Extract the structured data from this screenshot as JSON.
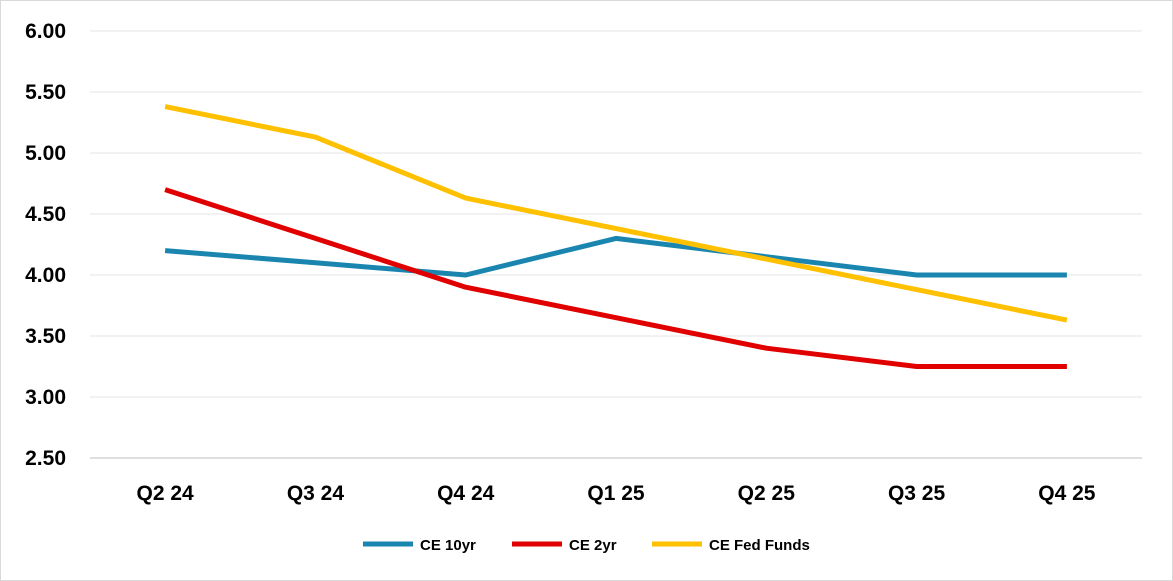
{
  "chart_data": {
    "type": "line",
    "title": "",
    "xlabel": "",
    "ylabel": "",
    "categories": [
      "Q2 24",
      "Q3 24",
      "Q4 24",
      "Q1 25",
      "Q2 25",
      "Q3 25",
      "Q4 25"
    ],
    "ylim": [
      2.5,
      6.0
    ],
    "yticks": [
      "2.50",
      "3.00",
      "3.50",
      "4.00",
      "4.50",
      "5.00",
      "5.50",
      "6.00"
    ],
    "grid": true,
    "legend_position": "bottom",
    "series": [
      {
        "name": "CE 10yr",
        "color": "#1a86b0",
        "values": [
          4.2,
          4.1,
          4.0,
          4.3,
          4.15,
          4.0,
          4.0
        ]
      },
      {
        "name": "CE 2yr",
        "color": "#e00000",
        "values": [
          4.7,
          4.3,
          3.9,
          3.65,
          3.4,
          3.25,
          3.25
        ]
      },
      {
        "name": "CE Fed Funds",
        "color": "#ffc000",
        "values": [
          5.38,
          5.13,
          4.63,
          4.38,
          4.13,
          3.88,
          3.63
        ]
      }
    ]
  }
}
